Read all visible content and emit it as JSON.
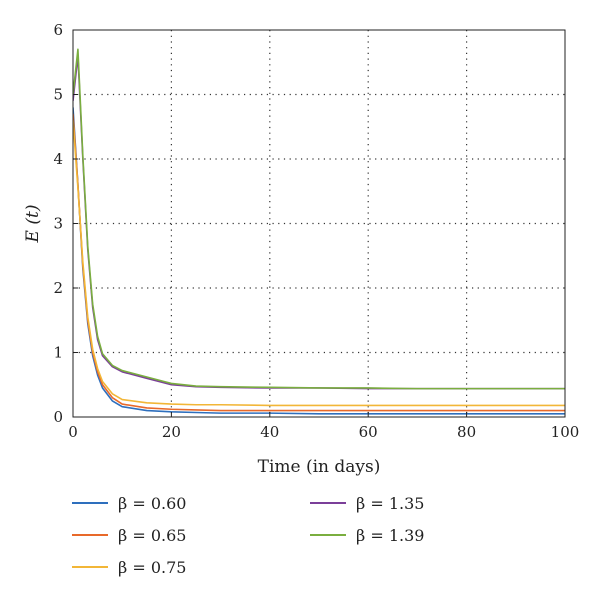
{
  "chart_data": {
    "type": "line",
    "title": "",
    "xlabel": "Time (in days)",
    "ylabel": "E (t)",
    "xlim": [
      0,
      100
    ],
    "ylim": [
      0,
      6
    ],
    "xticks": [
      0,
      20,
      40,
      60,
      80,
      100
    ],
    "yticks": [
      0,
      1,
      2,
      3,
      4,
      5,
      6
    ],
    "grid": true,
    "legend_position": "bottom",
    "x": [
      0,
      1,
      2,
      3,
      4,
      5,
      6,
      8,
      10,
      15,
      20,
      25,
      30,
      40,
      50,
      60,
      70,
      80,
      90,
      100
    ],
    "series": [
      {
        "name": "β = 0.60",
        "color": "#2e6fbd",
        "values": [
          4.8,
          3.6,
          2.3,
          1.45,
          0.95,
          0.65,
          0.45,
          0.25,
          0.16,
          0.1,
          0.08,
          0.07,
          0.06,
          0.06,
          0.05,
          0.05,
          0.05,
          0.05,
          0.05,
          0.05
        ]
      },
      {
        "name": "β = 0.65",
        "color": "#e8692a",
        "values": [
          4.7,
          3.6,
          2.35,
          1.5,
          1.0,
          0.7,
          0.5,
          0.3,
          0.2,
          0.14,
          0.12,
          0.11,
          0.1,
          0.1,
          0.1,
          0.1,
          0.1,
          0.1,
          0.1,
          0.1
        ]
      },
      {
        "name": "β = 0.75",
        "color": "#f2b637",
        "values": [
          4.6,
          3.55,
          2.4,
          1.55,
          1.05,
          0.75,
          0.55,
          0.36,
          0.27,
          0.22,
          0.2,
          0.19,
          0.19,
          0.18,
          0.18,
          0.18,
          0.18,
          0.18,
          0.18,
          0.18
        ]
      },
      {
        "name": "β = 1.35",
        "color": "#7b3f99",
        "values": [
          4.9,
          5.6,
          4.0,
          2.6,
          1.7,
          1.2,
          0.95,
          0.78,
          0.7,
          0.6,
          0.5,
          0.47,
          0.46,
          0.45,
          0.45,
          0.44,
          0.44,
          0.44,
          0.44,
          0.44
        ]
      },
      {
        "name": "β = 1.39",
        "color": "#7aae3f",
        "values": [
          5.0,
          5.7,
          4.05,
          2.65,
          1.75,
          1.25,
          0.98,
          0.8,
          0.72,
          0.62,
          0.52,
          0.48,
          0.47,
          0.46,
          0.45,
          0.45,
          0.44,
          0.44,
          0.44,
          0.44
        ]
      }
    ]
  }
}
